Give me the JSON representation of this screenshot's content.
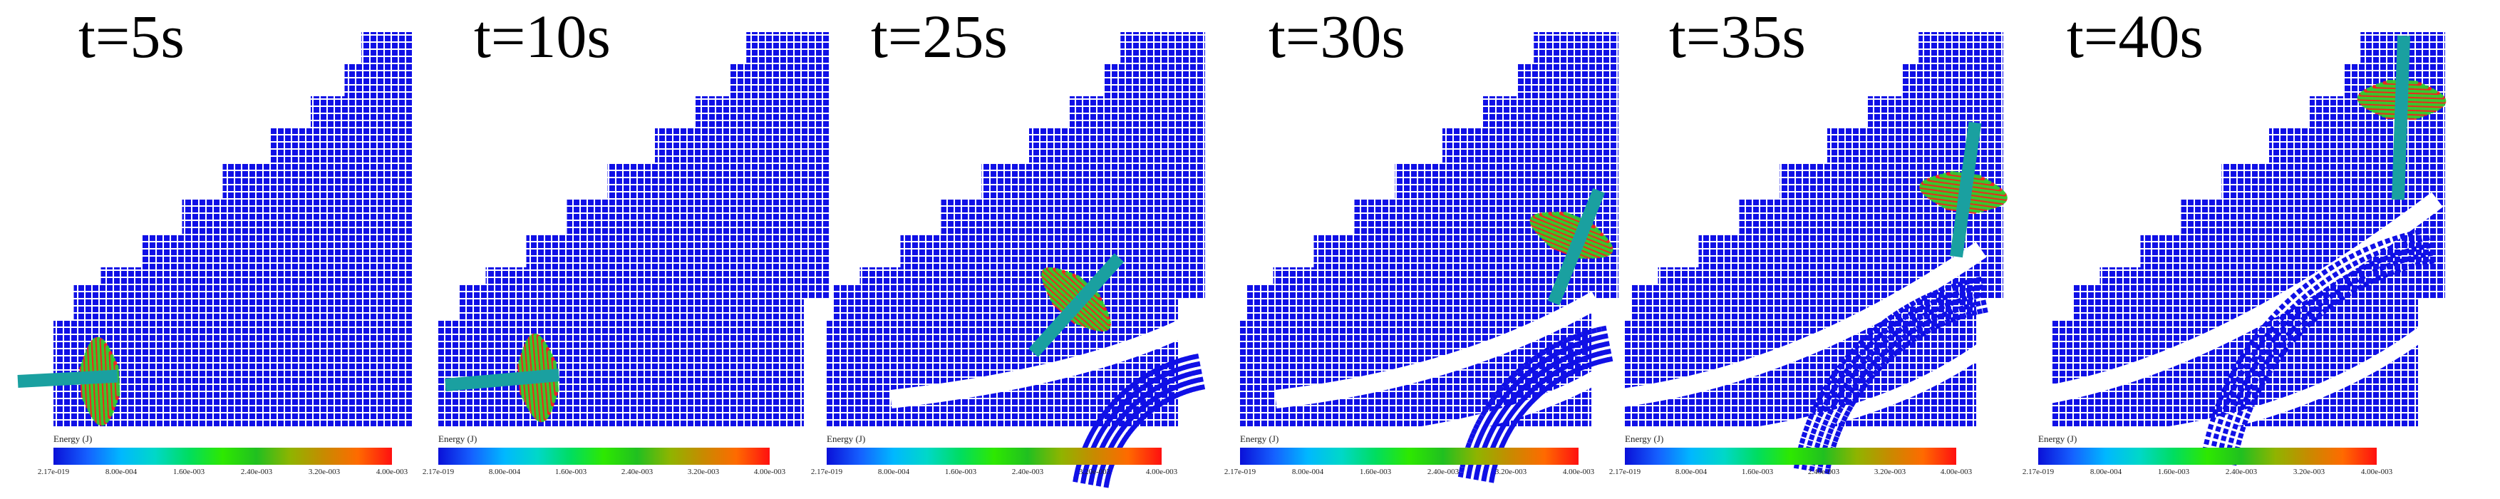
{
  "colors": {
    "particle": "#1010e6",
    "grid": "#ffffff",
    "bolt": "#1aa0a0",
    "energy_high": "#ff1a1a",
    "energy_mid": "#2fcf2f",
    "background": "#ffffff"
  },
  "colorbar": {
    "title": "Energy (J)",
    "ticks": [
      "2.17e-019",
      "8.00e-004",
      "1.60e-003",
      "2.40e-003",
      "3.20e-003",
      "4.00e-003"
    ],
    "stops": [
      "#0a10d8",
      "#1560ff",
      "#00b8ff",
      "#00d8c8",
      "#00dd60",
      "#2ee800",
      "#20c020",
      "#8fb400",
      "#c88a00",
      "#ff6a00",
      "#ff1010"
    ]
  },
  "panels": [
    {
      "label": "t=5s",
      "stage": 0
    },
    {
      "label": "t=10s",
      "stage": 1
    },
    {
      "label": "t=25s",
      "stage": 2
    },
    {
      "label": "t=30s",
      "stage": 3
    },
    {
      "label": "t=35s",
      "stage": 4
    },
    {
      "label": "t=40s",
      "stage": 5
    }
  ]
}
